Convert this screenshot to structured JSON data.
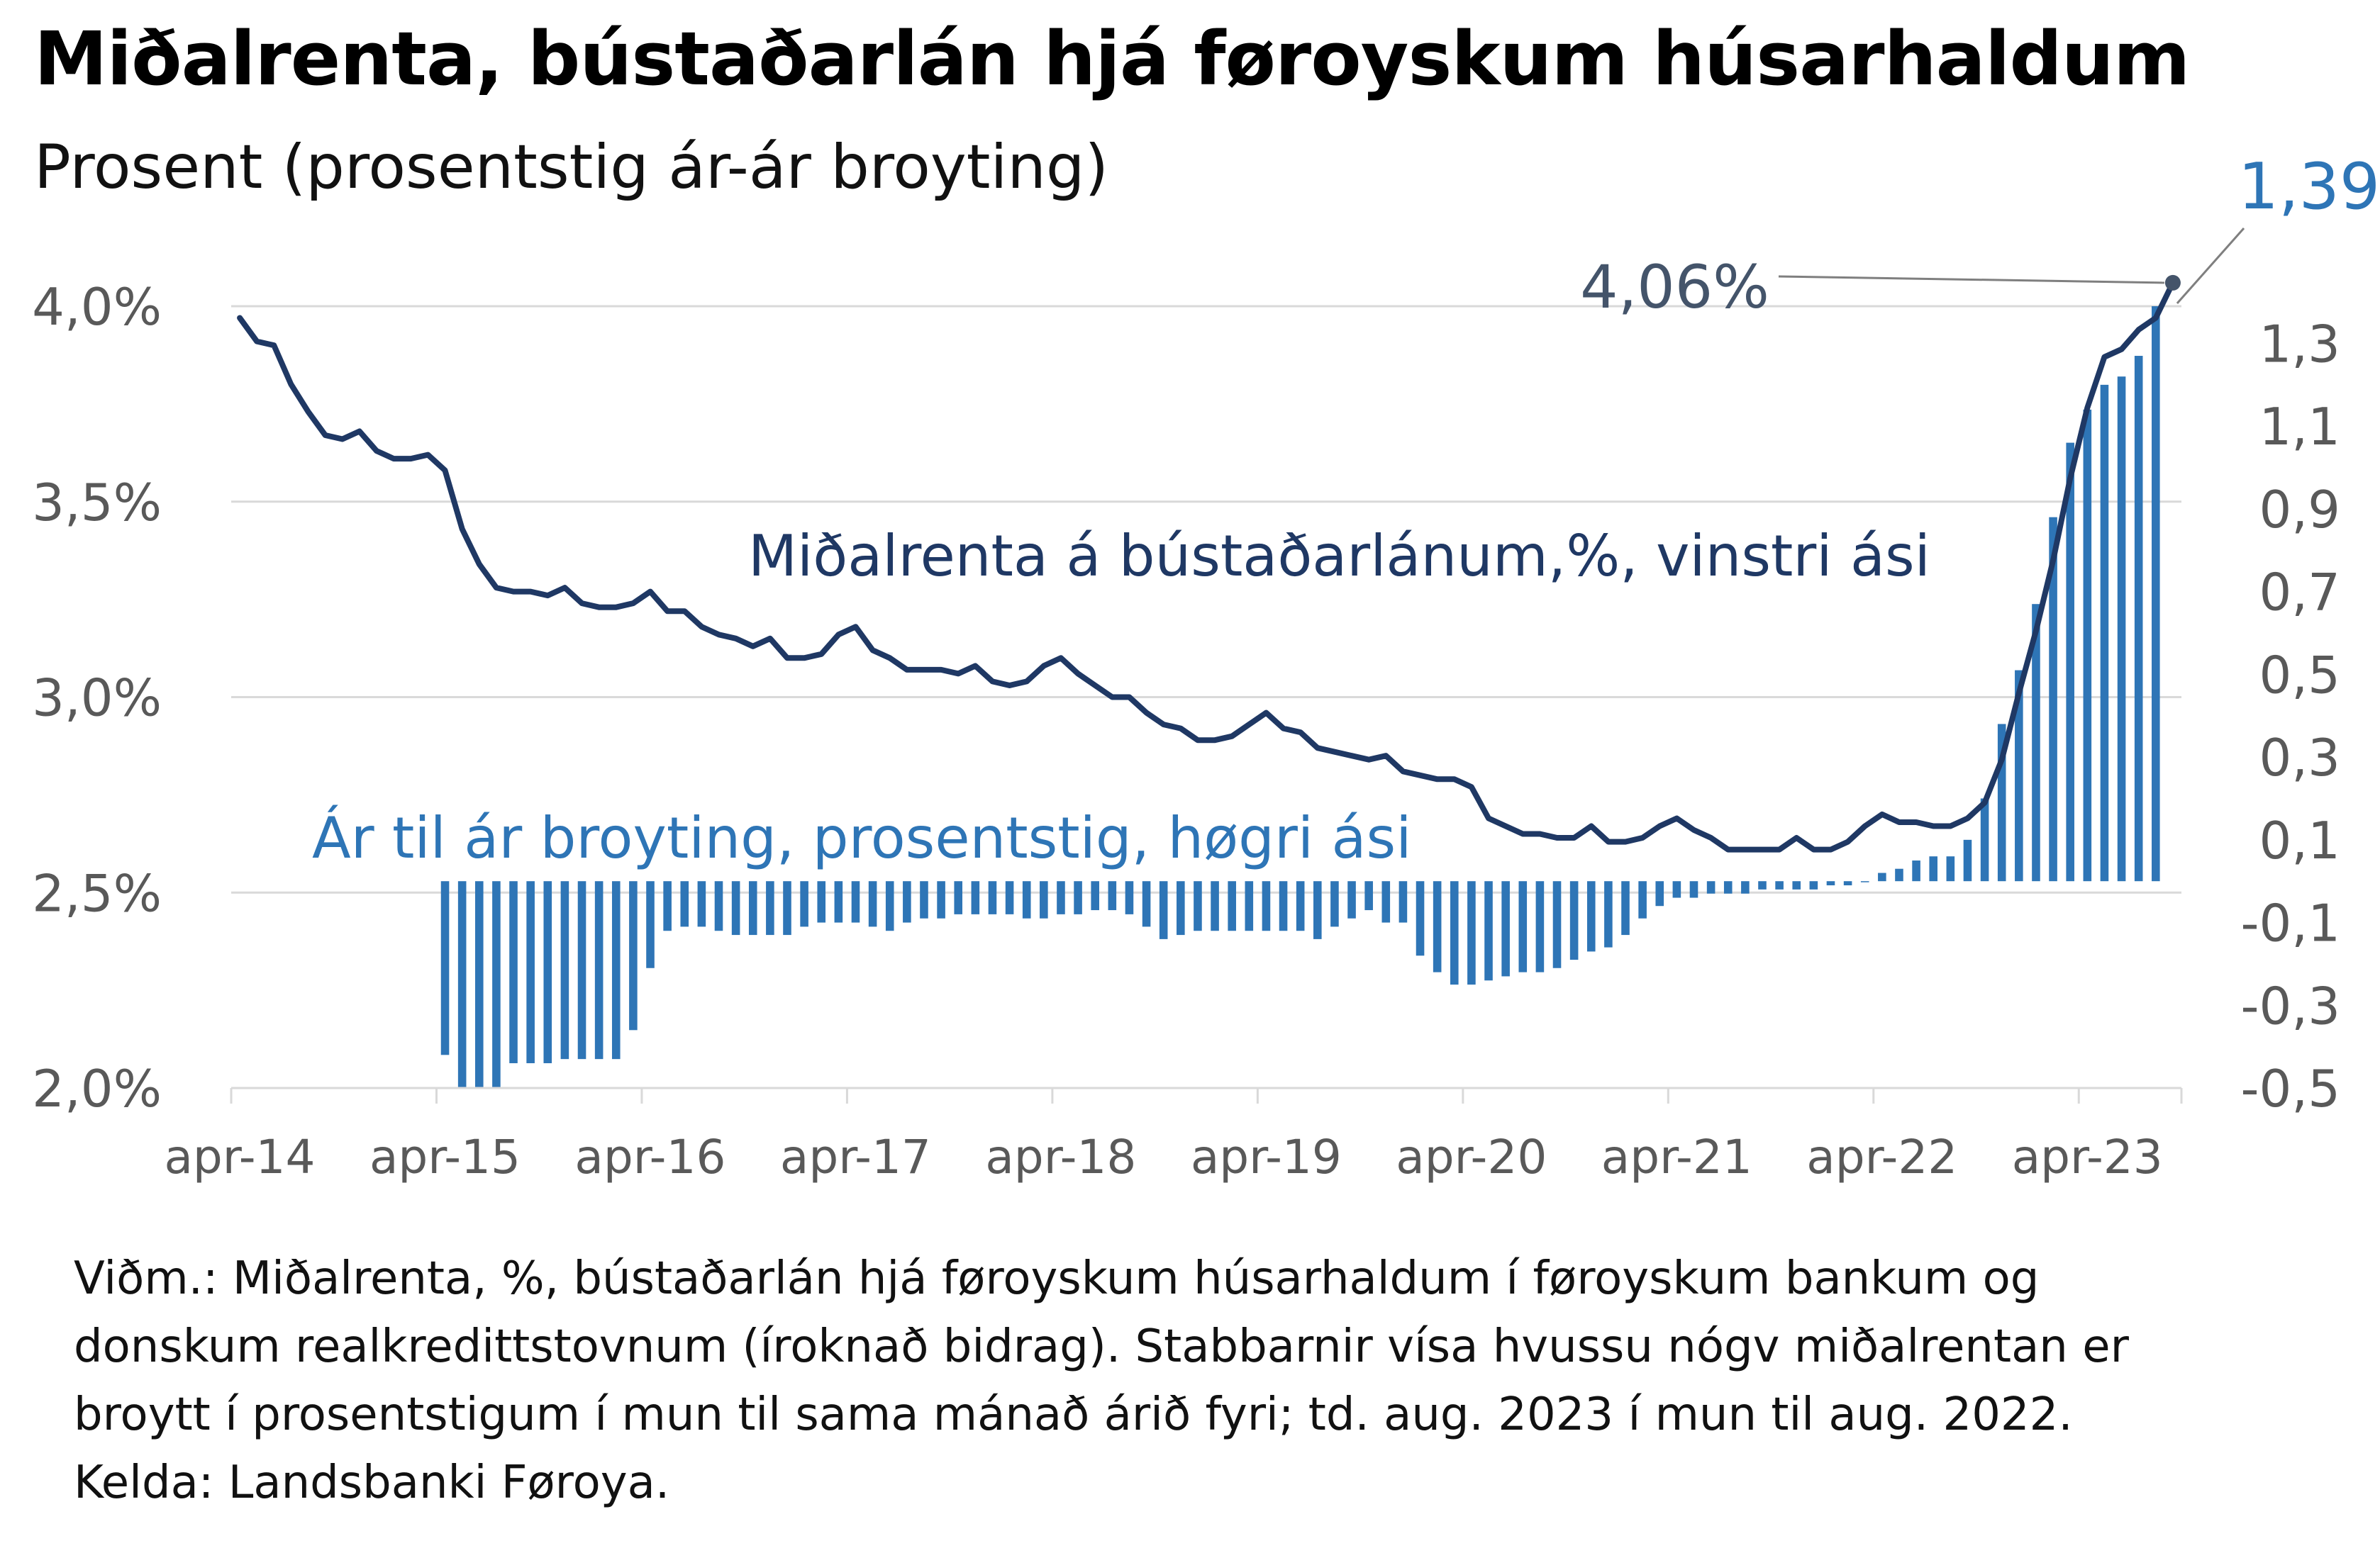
{
  "title": "Miðalrenta, bústaðarlán hjá føroyskum húsarhaldum",
  "subtitle": "Prosent (prosentstig ár-ár broyting)",
  "footer": {
    "lines": [
      "Viðm.: Miðalrenta, %, bústaðarlán hjá føroyskum húsarhaldum í føroyskum bankum og",
      "donskum realkredittstovnum (íroknað bidrag). Stabbarnir vísa hvussu nógv miðalrentan er",
      "broytt í prosentstigum í mun til sama mánað árið fyri; td. aug. 2023 í mun til aug. 2022.",
      "Kelda: Landsbanki Føroya."
    ]
  },
  "colors": {
    "line": "#1f3864",
    "bar": "#2e75b6",
    "axis_text": "#595959",
    "grid": "#d9d9d9",
    "annotation_left": "#44546a",
    "annotation_right": "#2e75b6"
  },
  "chart_data": {
    "type": "bar+line",
    "x_start": "2014-04",
    "x_end": "2023-08",
    "xtick_labels": [
      "apr-14",
      "apr-15",
      "apr-16",
      "apr-17",
      "apr-18",
      "apr-19",
      "apr-20",
      "apr-21",
      "apr-22",
      "apr-23"
    ],
    "left_axis": {
      "ylim": [
        2.0,
        4.0
      ],
      "ticks": [
        2.0,
        2.5,
        3.0,
        3.5,
        4.0
      ],
      "tick_labels": [
        "2,0%",
        "2,5%",
        "3,0%",
        "3,5%",
        "4,0%"
      ]
    },
    "right_axis": {
      "ylim": [
        -0.5,
        1.39
      ],
      "ticks": [
        -0.5,
        -0.3,
        -0.1,
        0.1,
        0.3,
        0.5,
        0.7,
        0.9,
        1.1,
        1.3
      ],
      "tick_labels": [
        "-0,5",
        "-0,3",
        "-0,1",
        "0,1",
        "0,3",
        "0,5",
        "0,7",
        "0,9",
        "1,1",
        "1,3"
      ]
    },
    "line_series": {
      "name": "Miðalrenta á bústaðarlánum,%, vinstri ási",
      "axis": "left",
      "values": [
        3.97,
        3.91,
        3.9,
        3.8,
        3.73,
        3.67,
        3.66,
        3.68,
        3.63,
        3.61,
        3.61,
        3.62,
        3.58,
        3.43,
        3.34,
        3.28,
        3.27,
        3.27,
        3.26,
        3.28,
        3.24,
        3.23,
        3.23,
        3.24,
        3.27,
        3.22,
        3.22,
        3.18,
        3.16,
        3.15,
        3.13,
        3.15,
        3.1,
        3.1,
        3.11,
        3.16,
        3.18,
        3.12,
        3.1,
        3.07,
        3.07,
        3.07,
        3.06,
        3.08,
        3.04,
        3.03,
        3.04,
        3.08,
        3.1,
        3.06,
        3.03,
        3.0,
        3.0,
        2.96,
        2.93,
        2.92,
        2.89,
        2.89,
        2.9,
        2.93,
        2.96,
        2.92,
        2.91,
        2.87,
        2.86,
        2.85,
        2.84,
        2.85,
        2.81,
        2.8,
        2.79,
        2.79,
        2.77,
        2.69,
        2.67,
        2.65,
        2.65,
        2.64,
        2.64,
        2.67,
        2.63,
        2.63,
        2.64,
        2.67,
        2.69,
        2.66,
        2.64,
        2.61,
        2.61,
        2.61,
        2.61,
        2.64,
        2.61,
        2.61,
        2.63,
        2.67,
        2.7,
        2.68,
        2.68,
        2.67,
        2.67,
        2.69,
        2.73,
        2.84,
        3.01,
        3.17,
        3.35,
        3.56,
        3.74,
        3.87,
        3.89,
        3.94,
        3.97,
        4.06
      ],
      "end_label": "4,06%"
    },
    "bar_series": {
      "name": "Ár til ár broyting, prosentstig, høgri ási",
      "axis": "right",
      "values": [
        null,
        null,
        null,
        null,
        null,
        null,
        null,
        null,
        null,
        null,
        null,
        null,
        -0.42,
        -0.5,
        -0.5,
        -0.5,
        -0.44,
        -0.44,
        -0.44,
        -0.43,
        -0.43,
        -0.43,
        -0.43,
        -0.36,
        -0.21,
        -0.12,
        -0.11,
        -0.11,
        -0.12,
        -0.13,
        -0.13,
        -0.13,
        -0.13,
        -0.11,
        -0.1,
        -0.1,
        -0.1,
        -0.11,
        -0.12,
        -0.1,
        -0.09,
        -0.09,
        -0.08,
        -0.08,
        -0.08,
        -0.08,
        -0.09,
        -0.09,
        -0.08,
        -0.08,
        -0.07,
        -0.07,
        -0.08,
        -0.11,
        -0.14,
        -0.13,
        -0.12,
        -0.12,
        -0.12,
        -0.12,
        -0.12,
        -0.12,
        -0.12,
        -0.14,
        -0.11,
        -0.09,
        -0.07,
        -0.1,
        -0.1,
        -0.18,
        -0.22,
        -0.25,
        -0.25,
        -0.24,
        -0.23,
        -0.22,
        -0.22,
        -0.21,
        -0.19,
        -0.17,
        -0.16,
        -0.13,
        -0.09,
        -0.06,
        -0.04,
        -0.04,
        -0.03,
        -0.03,
        -0.03,
        -0.02,
        -0.02,
        -0.02,
        -0.02,
        -0.01,
        -0.01,
        0.0,
        0.02,
        0.03,
        0.05,
        0.06,
        0.06,
        0.1,
        0.2,
        0.38,
        0.51,
        0.67,
        0.88,
        1.06,
        1.14,
        1.2,
        1.22,
        1.27,
        1.39
      ],
      "end_label": "1,39"
    }
  }
}
